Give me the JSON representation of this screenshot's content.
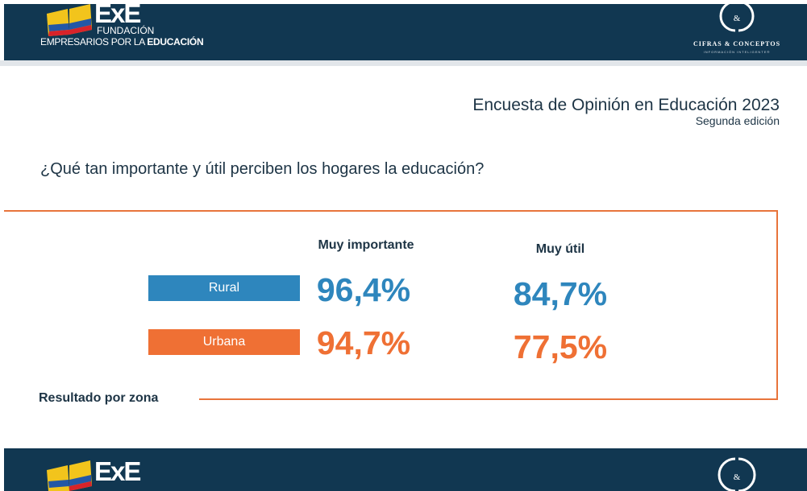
{
  "header": {
    "org_exe": "ExE",
    "org_line1": "FUNDACIÓN",
    "org_line2_prefix": "EMPRESARIOS POR LA ",
    "org_line2_bold": "EDUCACIÓN",
    "partner_name": "CIFRAS & CONCEPTOS",
    "partner_tagline": "INFORMACIÓN INTELIGENTE®",
    "partner_mark": "&"
  },
  "slide": {
    "survey_title": "Encuesta de Opinión en Educación 2023",
    "survey_subtitle": "Segunda edición",
    "question": "¿Qué tan importante y útil perciben los hogares la educación?",
    "columns": [
      "Muy importante",
      "Muy útil"
    ],
    "rows": [
      {
        "label": "Rural",
        "values": [
          "96,4%",
          "84,7%"
        ],
        "color": "#2e86bd"
      },
      {
        "label": "Urbana",
        "values": [
          "94,7%",
          "77,5%"
        ],
        "color": "#ef7034"
      }
    ],
    "footer_label": "Resultado por zona",
    "frame_color": "#e8743b"
  },
  "footer": {
    "org_exe": "ExE",
    "partner_mark": "&"
  }
}
